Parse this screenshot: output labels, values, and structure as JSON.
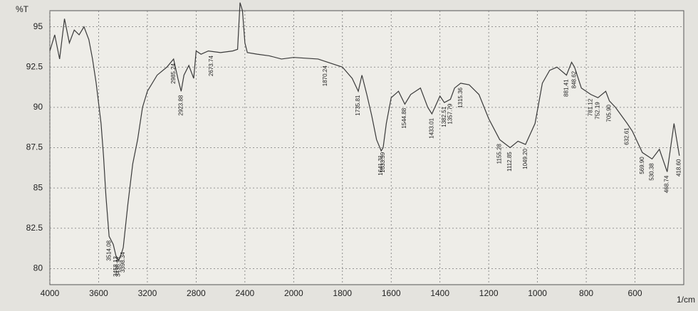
{
  "chart_data": {
    "type": "line",
    "y_label": "%T",
    "x_label": "1/cm",
    "xlim": [
      4000,
      400
    ],
    "x_scale_break": 2000,
    "ylim": [
      79,
      96
    ],
    "xticks": [
      4000,
      3600,
      3200,
      2800,
      2400,
      2000,
      1800,
      1600,
      1400,
      1200,
      1000,
      800,
      600
    ],
    "yticks": [
      80,
      82.5,
      85,
      87.5,
      90,
      92.5,
      95
    ],
    "grid": true,
    "series": [
      {
        "color": "#3a3a3a",
        "x": [
          4000,
          3960,
          3920,
          3880,
          3840,
          3800,
          3760,
          3720,
          3680,
          3650,
          3620,
          3580,
          3560,
          3540,
          3514,
          3480,
          3458,
          3436,
          3410,
          3398,
          3360,
          3320,
          3280,
          3240,
          3200,
          3120,
          3040,
          2985,
          2950,
          2923,
          2900,
          2860,
          2820,
          2800,
          2760,
          2700,
          2600,
          2500,
          2460,
          2440,
          2420,
          2400,
          2380,
          2300,
          2200,
          2100,
          2000,
          1900,
          1800,
          1760,
          1735,
          1720,
          1700,
          1680,
          1660,
          1641,
          1633,
          1620,
          1600,
          1570,
          1544,
          1520,
          1480,
          1450,
          1433,
          1400,
          1382,
          1357,
          1340,
          1315,
          1280,
          1240,
          1200,
          1155,
          1112,
          1080,
          1049,
          1010,
          980,
          950,
          920,
          881,
          860,
          848,
          820,
          781,
          752,
          720,
          705,
          680,
          632,
          610,
          570,
          530,
          500,
          468,
          440,
          418
        ],
        "values": [
          93.5,
          94.5,
          93,
          95.5,
          94,
          94.8,
          94.5,
          95,
          94.2,
          93,
          91.5,
          89,
          87,
          84.5,
          82,
          81.5,
          80.8,
          80.5,
          81,
          81.3,
          84,
          86.5,
          88,
          90,
          91,
          92,
          92.5,
          93,
          91.8,
          91,
          92,
          92.6,
          91.8,
          93.5,
          93.3,
          93.5,
          93.4,
          93.5,
          93.6,
          96.5,
          96,
          94,
          93.4,
          93.3,
          93.2,
          93,
          93.1,
          93,
          92.5,
          91.8,
          91,
          92,
          90.8,
          89.5,
          88,
          87.3,
          87.5,
          89,
          90.6,
          91,
          90.2,
          90.8,
          91.2,
          90,
          89.6,
          90.7,
          90.3,
          90.5,
          91.2,
          91.5,
          91.4,
          90.8,
          89.3,
          88,
          87.5,
          87.9,
          87.7,
          89,
          91.5,
          92.3,
          92.5,
          92,
          92.8,
          92.5,
          91.2,
          90.8,
          90.6,
          91,
          90.4,
          90,
          89,
          88.5,
          87.2,
          86.8,
          87.4,
          86,
          89,
          87
        ]
      }
    ],
    "peak_labels": [
      3514.08,
      3458.13,
      3436.91,
      3398.34,
      2985.24,
      2923.88,
      2673.74,
      1735.81,
      1870.24,
      1641.31,
      1633.59,
      1544.88,
      1433.01,
      1382.51,
      1357.79,
      1315.36,
      1155.28,
      1112.85,
      {
        "value": 1049.2,
        "label": "1049.20"
      },
      881.41,
      848.62,
      781.12,
      752.19,
      {
        "value": 705.9,
        "label": "705.90"
      },
      632.61,
      {
        "value": 569.9,
        "label": "569.90"
      },
      530.38,
      468.74,
      {
        "value": 418.6,
        "label": "418.60"
      }
    ]
  }
}
